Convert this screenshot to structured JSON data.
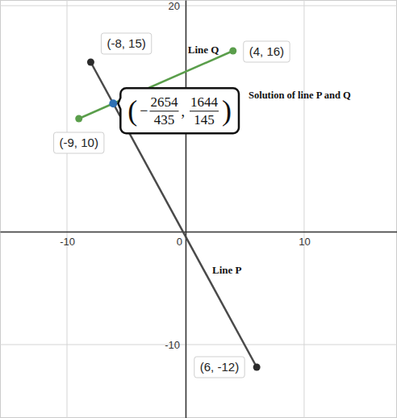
{
  "chart_data": {
    "type": "line",
    "xlim": [
      -15.65,
      17.83
    ],
    "ylim": [
      -16.5,
      20.5
    ],
    "xticks": [
      -10,
      0,
      10
    ],
    "yticks": [
      -10,
      20
    ],
    "grid": true,
    "series": [
      {
        "name": "Line P",
        "color": "#4a4a4a",
        "marker": "circle",
        "x": [
          -8,
          6
        ],
        "values": [
          15,
          -12
        ],
        "point_labels": [
          "(-8, 15)",
          "(6, -12)"
        ]
      },
      {
        "name": "Line Q",
        "color": "#5a9e4b",
        "marker": "circle",
        "x": [
          -9,
          4
        ],
        "values": [
          10,
          16
        ],
        "point_labels": [
          "(-9, 10)",
          "(4, 16)"
        ]
      }
    ],
    "solution": {
      "color": "#2d70b3",
      "x": -6.101149,
      "y": 11.337931,
      "brackets": [
        "(",
        ")"
      ],
      "separator": ",",
      "x_sign": "−",
      "x_numerator": "2654",
      "x_denominator": "435",
      "y_numerator": "1644",
      "y_denominator": "145"
    },
    "annotation": "Solution of line P and Q"
  }
}
